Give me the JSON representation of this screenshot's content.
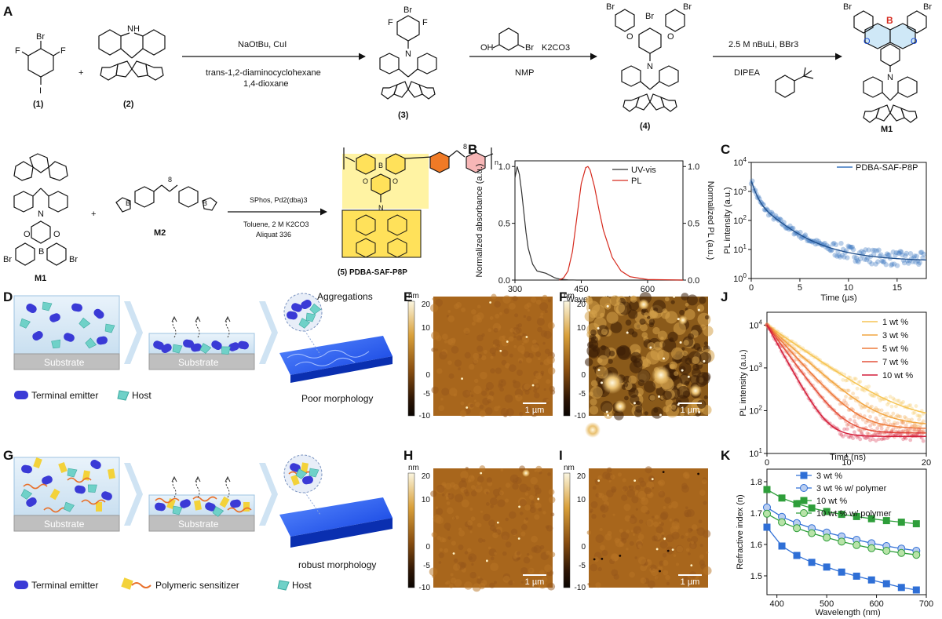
{
  "panels": {
    "A": "A",
    "B": "B",
    "C": "C",
    "D": "D",
    "E": "E",
    "F": "F",
    "G": "G",
    "H": "H",
    "I": "I",
    "J": "J",
    "K": "K"
  },
  "synthesis": {
    "compounds": {
      "c1": "(1)",
      "c2": "(2)",
      "c3": "(3)",
      "c4": "(4)",
      "m1": "M1",
      "m1b": "M1",
      "m2": "M2",
      "p5": "(5) PDBA-SAF-P8P"
    },
    "step1": {
      "top": "NaOtBu, CuI",
      "bottom1": "trans-1,2-diaminocyclohexane",
      "bottom2": "1,4-dioxane"
    },
    "step2": {
      "top_reagent": "OH",
      "top_reagent2": "Br",
      "top_base": "K2CO3",
      "bottom": "NMP"
    },
    "step3": {
      "top": "2.5 M nBuLi, BBr3",
      "bottom": "DIPEA"
    },
    "step4": {
      "top": "SPhos, Pd2(dba)3",
      "bottom1": "Toluene, 2 M K2CO3",
      "bottom2": "Aliquat 336"
    },
    "atoms": {
      "br": "Br",
      "f": "F",
      "i": "I",
      "nh": "NH",
      "n": "N",
      "o": "O",
      "b": "B",
      "plus": "+",
      "sub8": "8",
      "subn": "n"
    }
  },
  "schematics": {
    "substrate": "Substrate",
    "aggregations": "Aggregations",
    "poor": "Poor morphology",
    "robust": "robust morphology",
    "legend_D": [
      "Terminal emitter",
      "Host"
    ],
    "legend_G": [
      "Terminal emitter",
      "Polymeric sensitizer",
      "Host"
    ],
    "colors": {
      "emitter": "#3a3ad6",
      "host": "#6fd1c8",
      "sensitizer": "#f3d23a",
      "chain": "#e8702a",
      "film": "#1f5fff"
    }
  },
  "afm": {
    "unit": "nm",
    "scale_ticks": [
      "20",
      "10",
      "0",
      "-5",
      "-10"
    ],
    "scalebar": "1 µm"
  },
  "chart_data": [
    {
      "panel": "B",
      "type": "line",
      "xlabel": "Wavelength (nm)",
      "ylabel": "Normalized absorbance (a.u.)",
      "y2label": "Normalized PL (a.u.)",
      "xlim": [
        300,
        680
      ],
      "ylim": [
        0,
        1.05
      ],
      "xticks": [
        "300",
        "450",
        "600"
      ],
      "yticks": [
        "0.0",
        "0.5",
        "1.0"
      ],
      "legend": "top-right",
      "series": [
        {
          "name": "UV-vis",
          "color": "#333333",
          "x": [
            300,
            305,
            310,
            315,
            320,
            325,
            330,
            340,
            350,
            360,
            370,
            380,
            390,
            400,
            410,
            420,
            440,
            480,
            560,
            680
          ],
          "y": [
            0.9,
            1.0,
            0.93,
            0.78,
            0.6,
            0.42,
            0.28,
            0.14,
            0.08,
            0.07,
            0.06,
            0.04,
            0.02,
            0.01,
            0.005,
            0.002,
            0.0,
            0.0,
            0.0,
            0.0
          ]
        },
        {
          "name": "PL",
          "color": "#d62a1e",
          "x": [
            400,
            410,
            420,
            430,
            440,
            450,
            460,
            465,
            470,
            480,
            490,
            500,
            520,
            540,
            560,
            600,
            680
          ],
          "y": [
            0.0,
            0.02,
            0.08,
            0.25,
            0.55,
            0.85,
            0.99,
            1.0,
            0.97,
            0.82,
            0.62,
            0.44,
            0.2,
            0.08,
            0.03,
            0.005,
            0.0
          ]
        }
      ]
    },
    {
      "panel": "C",
      "type": "scatter",
      "xlabel": "Time (µs)",
      "ylabel": "PL intensity (a.u.)",
      "xlim": [
        0,
        18
      ],
      "yscale": "log",
      "ylim": [
        1,
        10000
      ],
      "xticks": [
        "0",
        "5",
        "10",
        "15"
      ],
      "yticks": [
        "10^0",
        "10^1",
        "10^2",
        "10^3",
        "10^4"
      ],
      "legend": "top-right",
      "series": [
        {
          "name": "PDBA-SAF-P8P",
          "color": "#3a76c0"
        }
      ]
    },
    {
      "panel": "J",
      "type": "line",
      "xlabel": "Time (ns)",
      "ylabel": "PL intensity (a.u.)",
      "xlim": [
        0,
        20
      ],
      "yscale": "log",
      "ylim": [
        10,
        20000
      ],
      "xticks": [
        "0",
        "10",
        "20"
      ],
      "yticks": [
        "10^1",
        "10^2",
        "10^3",
        "10^4"
      ],
      "legend": "top-right",
      "series": [
        {
          "name": "1 wt %",
          "color": "#f6c453",
          "tau": 3.4,
          "floor": 60
        },
        {
          "name": "3 wt %",
          "color": "#f2a541",
          "tau": 2.6,
          "floor": 45
        },
        {
          "name": "5 wt %",
          "color": "#ee7b3c",
          "tau": 2.1,
          "floor": 38
        },
        {
          "name": "7 wt %",
          "color": "#e4503a",
          "tau": 1.7,
          "floor": 30
        },
        {
          "name": "10 wt %",
          "color": "#d41f3a",
          "tau": 1.3,
          "floor": 25
        }
      ]
    },
    {
      "panel": "K",
      "type": "line",
      "xlabel": "Wavelength (nm)",
      "ylabel": "Refractive index (n)",
      "xlim": [
        380,
        700
      ],
      "ylim": [
        1.44,
        1.84
      ],
      "xticks": [
        "400",
        "500",
        "600",
        "700"
      ],
      "yticks": [
        "1.5",
        "1.6",
        "1.7",
        "1.8"
      ],
      "legend": "top-right",
      "x": [
        380,
        410,
        440,
        470,
        500,
        530,
        560,
        590,
        620,
        650,
        680
      ],
      "series": [
        {
          "name": "3 wt %",
          "color": "#2f6fd6",
          "marker": "square",
          "values": [
            1.655,
            1.595,
            1.565,
            1.543,
            1.528,
            1.512,
            1.499,
            1.487,
            1.475,
            1.463,
            1.455
          ]
        },
        {
          "name": "3 wt % w/ polymer",
          "color": "#2f6fd6",
          "marker": "circle-light",
          "values": [
            1.718,
            1.688,
            1.668,
            1.652,
            1.638,
            1.626,
            1.615,
            1.604,
            1.595,
            1.587,
            1.58
          ]
        },
        {
          "name": "10 wt %",
          "color": "#2e9e3a",
          "marker": "square",
          "values": [
            1.775,
            1.748,
            1.73,
            1.716,
            1.705,
            1.696,
            1.689,
            1.682,
            1.676,
            1.671,
            1.666
          ]
        },
        {
          "name": "10 wt % w/ polymer",
          "color": "#2e9e3a",
          "marker": "circle-light",
          "values": [
            1.698,
            1.671,
            1.652,
            1.636,
            1.622,
            1.609,
            1.598,
            1.588,
            1.58,
            1.573,
            1.567
          ]
        }
      ]
    }
  ]
}
